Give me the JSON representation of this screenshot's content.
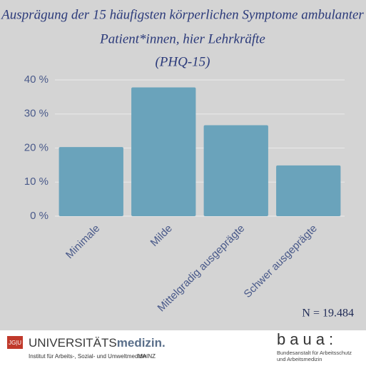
{
  "chart_data": {
    "type": "bar",
    "title": [
      "Ausprägung der 15 häufigsten körperlichen Symptome ambulanter",
      "Patient*innen, hier Lehrkräfte",
      "(PHQ-15)"
    ],
    "categories": [
      "Minimale",
      "Milde",
      "Mittelgradig ausgeprägte",
      "Schwer ausgeprägte"
    ],
    "values": [
      20.3,
      37.8,
      26.7,
      14.9
    ],
    "color": "#6aa3bb",
    "ylim": [
      0,
      40
    ],
    "yticks": [
      {
        "value": 0,
        "label": "0 %"
      },
      {
        "value": 10,
        "label": "10 %"
      },
      {
        "value": 20,
        "label": "20 %"
      },
      {
        "value": 30,
        "label": "30 %"
      },
      {
        "value": 40,
        "label": "40 %"
      }
    ],
    "grid": true,
    "annotation": "N = 19.484"
  },
  "footer": {
    "left": {
      "badge": "JG|U",
      "brand_plain": "UNIVERSITÄTS",
      "brand_bold": "medizin.",
      "institute": "Institut für Arbeits-, Sozial- und Umweltmedizin",
      "city": "MAINZ"
    },
    "right": {
      "logo": "baua:",
      "line1": "Bundesanstalt für Arbeitsschutz",
      "line2": "und Arbeitsmedizin"
    }
  }
}
